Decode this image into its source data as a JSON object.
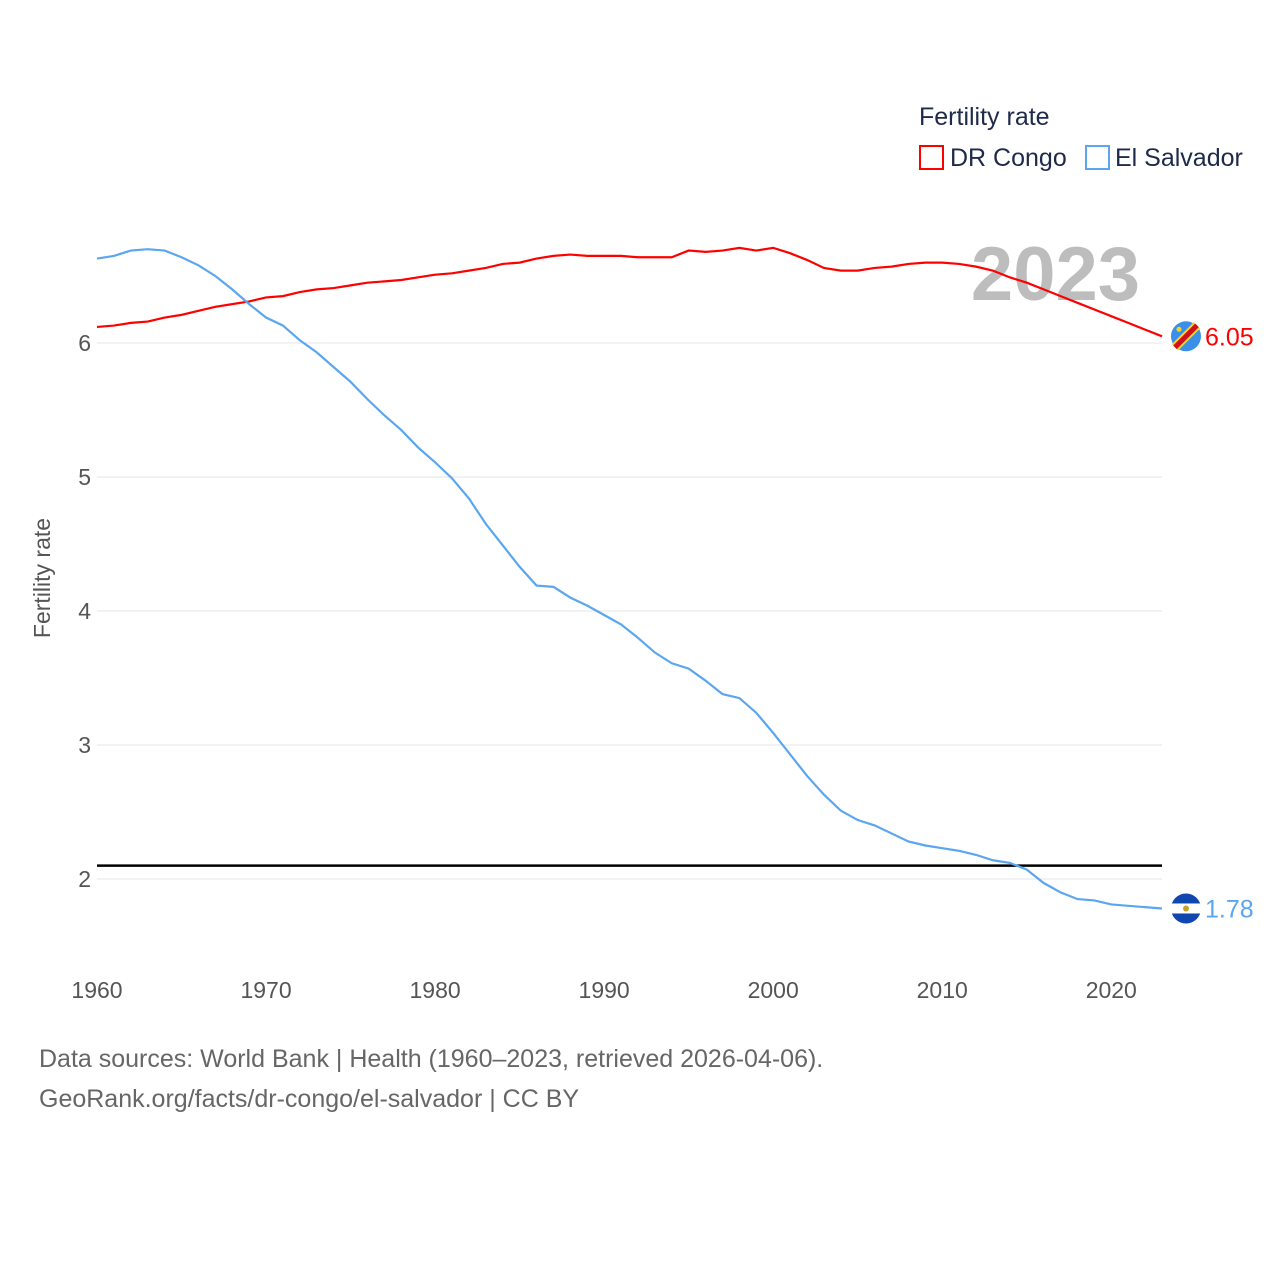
{
  "chart_data": {
    "type": "line",
    "title": "Fertility rate",
    "ylabel": "Fertility rate",
    "xlabel": "",
    "year_label": "2023",
    "xlim": [
      1960,
      2023
    ],
    "ylim": [
      1.5,
      7
    ],
    "x_ticks": [
      1960,
      1970,
      1980,
      1990,
      2000,
      2010,
      2020
    ],
    "y_ticks": [
      2,
      3,
      4,
      5,
      6
    ],
    "grid": true,
    "legend_position": "top-right",
    "reference_line": 2.1,
    "x": [
      1960,
      1961,
      1962,
      1963,
      1964,
      1965,
      1966,
      1967,
      1968,
      1969,
      1970,
      1971,
      1972,
      1973,
      1974,
      1975,
      1976,
      1977,
      1978,
      1979,
      1980,
      1981,
      1982,
      1983,
      1984,
      1985,
      1986,
      1987,
      1988,
      1989,
      1990,
      1991,
      1992,
      1993,
      1994,
      1995,
      1996,
      1997,
      1998,
      1999,
      2000,
      2001,
      2002,
      2003,
      2004,
      2005,
      2006,
      2007,
      2008,
      2009,
      2010,
      2011,
      2012,
      2013,
      2014,
      2015,
      2016,
      2017,
      2018,
      2019,
      2020,
      2021,
      2022,
      2023
    ],
    "series": [
      {
        "name": "DR Congo",
        "color": "#ff0000",
        "end_label": "6.05",
        "values": [
          6.12,
          6.13,
          6.15,
          6.16,
          6.19,
          6.21,
          6.24,
          6.27,
          6.29,
          6.31,
          6.34,
          6.35,
          6.38,
          6.4,
          6.41,
          6.43,
          6.45,
          6.46,
          6.47,
          6.49,
          6.51,
          6.52,
          6.54,
          6.56,
          6.59,
          6.6,
          6.63,
          6.65,
          6.66,
          6.65,
          6.65,
          6.65,
          6.64,
          6.64,
          6.64,
          6.69,
          6.68,
          6.69,
          6.71,
          6.69,
          6.71,
          6.67,
          6.62,
          6.56,
          6.54,
          6.54,
          6.56,
          6.57,
          6.59,
          6.6,
          6.6,
          6.59,
          6.57,
          6.54,
          6.49,
          6.45,
          6.4,
          6.35,
          6.3,
          6.25,
          6.2,
          6.15,
          6.1,
          6.05
        ]
      },
      {
        "name": "El Salvador",
        "color": "#5aa6f0",
        "end_label": "1.78",
        "values": [
          6.63,
          6.65,
          6.69,
          6.7,
          6.69,
          6.64,
          6.58,
          6.5,
          6.4,
          6.29,
          6.19,
          6.13,
          6.02,
          5.93,
          5.82,
          5.71,
          5.58,
          5.46,
          5.35,
          5.22,
          5.11,
          4.99,
          4.84,
          4.65,
          4.49,
          4.33,
          4.19,
          4.18,
          4.1,
          4.04,
          3.97,
          3.9,
          3.8,
          3.69,
          3.61,
          3.57,
          3.48,
          3.38,
          3.35,
          3.24,
          3.09,
          2.93,
          2.77,
          2.63,
          2.51,
          2.44,
          2.4,
          2.34,
          2.28,
          2.25,
          2.23,
          2.21,
          2.18,
          2.14,
          2.12,
          2.07,
          1.97,
          1.9,
          1.85,
          1.84,
          1.81,
          1.8,
          1.79,
          1.78
        ]
      }
    ]
  },
  "footer": {
    "source_line": "Data sources: World Bank | Health (1960–2023, retrieved 2026-04-06).",
    "url_line": "GeoRank.org/facts/dr-congo/el-salvador | CC BY"
  }
}
